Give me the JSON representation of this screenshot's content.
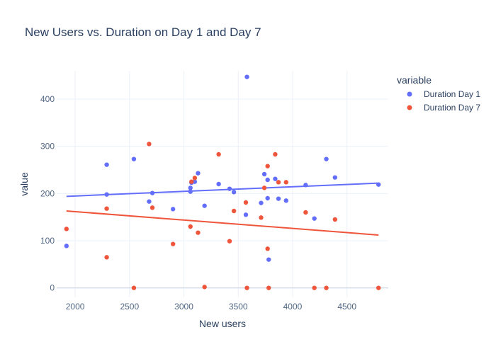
{
  "chart_data": {
    "type": "scatter",
    "title": "New Users vs. Duration on Day 1 and Day 7",
    "xlabel": "New users",
    "ylabel": "value",
    "xlim": [
      1830,
      4880
    ],
    "ylim": [
      -20,
      460
    ],
    "x_ticks": [
      2000,
      2500,
      3000,
      3500,
      4000,
      4500
    ],
    "y_ticks": [
      0,
      100,
      200,
      300,
      400
    ],
    "grid": true,
    "legend": {
      "title": "variable",
      "placement": "right"
    },
    "series": [
      {
        "name": "Duration Day 1",
        "color": "#636efa",
        "points": [
          [
            1920,
            89
          ],
          [
            2290,
            261
          ],
          [
            2290,
            198
          ],
          [
            2540,
            273
          ],
          [
            2680,
            183
          ],
          [
            2710,
            201
          ],
          [
            2900,
            167
          ],
          [
            3060,
            212
          ],
          [
            3060,
            204
          ],
          [
            3070,
            223
          ],
          [
            3100,
            225
          ],
          [
            3130,
            243
          ],
          [
            3190,
            174
          ],
          [
            3320,
            220
          ],
          [
            3420,
            210
          ],
          [
            3460,
            203
          ],
          [
            3570,
            155
          ],
          [
            3580,
            447
          ],
          [
            3710,
            180
          ],
          [
            3740,
            241
          ],
          [
            3770,
            229
          ],
          [
            3770,
            190
          ],
          [
            3780,
            60
          ],
          [
            3840,
            231
          ],
          [
            3870,
            189
          ],
          [
            3940,
            185
          ],
          [
            4120,
            218
          ],
          [
            4200,
            147
          ],
          [
            4310,
            273
          ],
          [
            4390,
            234
          ],
          [
            4790,
            219
          ]
        ],
        "trendline": [
          [
            1920,
            194
          ],
          [
            4790,
            222
          ]
        ]
      },
      {
        "name": "Duration Day 7",
        "color": "#ef553b",
        "points": [
          [
            1920,
            125
          ],
          [
            2290,
            168
          ],
          [
            2290,
            65
          ],
          [
            2540,
            0
          ],
          [
            2680,
            305
          ],
          [
            2710,
            170
          ],
          [
            2900,
            93
          ],
          [
            3060,
            130
          ],
          [
            3070,
            225
          ],
          [
            3100,
            233
          ],
          [
            3130,
            117
          ],
          [
            3190,
            2
          ],
          [
            3320,
            283
          ],
          [
            3420,
            99
          ],
          [
            3460,
            163
          ],
          [
            3570,
            181
          ],
          [
            3580,
            0
          ],
          [
            3710,
            149
          ],
          [
            3740,
            212
          ],
          [
            3770,
            258
          ],
          [
            3770,
            83
          ],
          [
            3780,
            0
          ],
          [
            3840,
            283
          ],
          [
            3870,
            224
          ],
          [
            3940,
            224
          ],
          [
            4120,
            160
          ],
          [
            4200,
            0
          ],
          [
            4310,
            0
          ],
          [
            4390,
            145
          ],
          [
            4790,
            0
          ]
        ],
        "trendline": [
          [
            1920,
            163
          ],
          [
            4790,
            112
          ]
        ]
      }
    ]
  }
}
